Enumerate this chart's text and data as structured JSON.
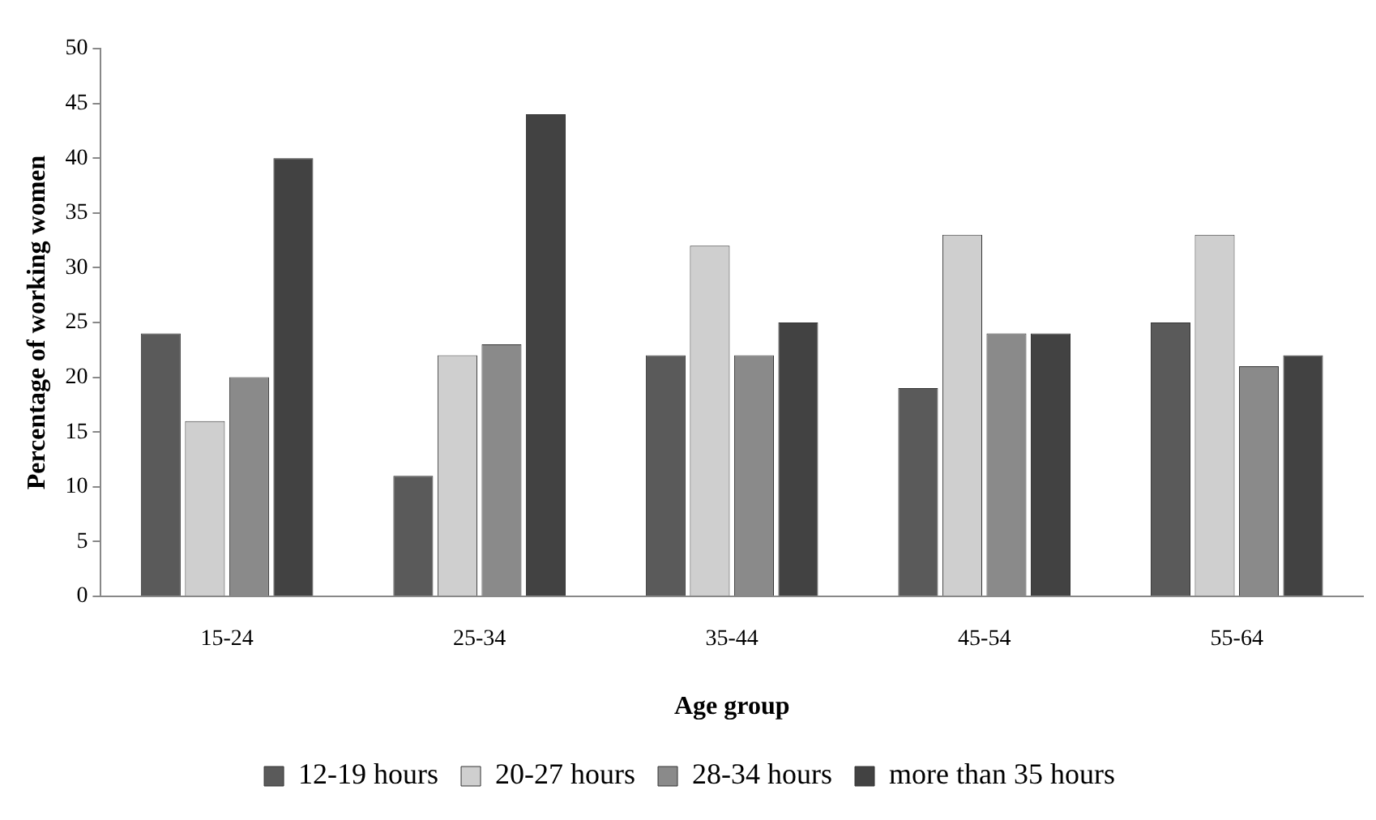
{
  "chart_data": {
    "type": "bar",
    "xlabel": "Age group",
    "ylabel": "Percentage of working women",
    "categories": [
      "15-24",
      "25-34",
      "35-44",
      "45-54",
      "55-64"
    ],
    "series": [
      {
        "name": "12-19 hours",
        "color": "#5a5a5a",
        "values": [
          24,
          11,
          22,
          19,
          25
        ]
      },
      {
        "name": "20-27 hours",
        "color": "#cfcfcf",
        "values": [
          16,
          22,
          32,
          33,
          33
        ]
      },
      {
        "name": "28-34 hours",
        "color": "#8a8a8a",
        "values": [
          20,
          23,
          22,
          24,
          21
        ]
      },
      {
        "name": "more than 35 hours",
        "color": "#424242",
        "values": [
          40,
          44,
          25,
          24,
          22
        ]
      }
    ],
    "ylim": [
      0,
      50
    ],
    "yticks": [
      0,
      5,
      10,
      15,
      20,
      25,
      30,
      35,
      40,
      45,
      50
    ],
    "grid": false,
    "legend": "bottom"
  }
}
